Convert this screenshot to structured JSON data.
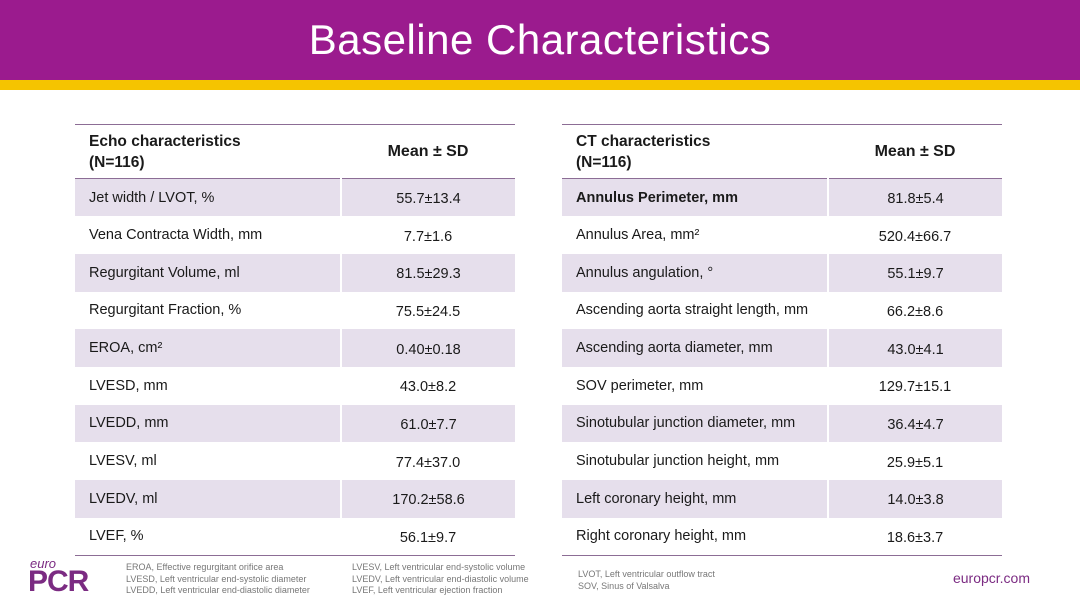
{
  "title": "Baseline Characteristics",
  "colors": {
    "title_bg": "#9b1b8e",
    "stripe": "#f5c400",
    "row_shade": "#e6dfec",
    "brand": "#7b2b82"
  },
  "echo_table": {
    "header_line1": "Echo characteristics",
    "header_line2": "(N=116)",
    "stat_header": "Mean ± SD",
    "rows": [
      {
        "label": "Jet width / LVOT, %",
        "value": "55.7±13.4"
      },
      {
        "label": "Vena Contracta Width, mm",
        "value": "7.7±1.6"
      },
      {
        "label": "Regurgitant Volume, ml",
        "value": "81.5±29.3"
      },
      {
        "label": "Regurgitant Fraction, %",
        "value": "75.5±24.5"
      },
      {
        "label": "EROA, cm²",
        "value": "0.40±0.18"
      },
      {
        "label": "LVESD, mm",
        "value": "43.0±8.2"
      },
      {
        "label": "LVEDD, mm",
        "value": "61.0±7.7"
      },
      {
        "label": "LVESV, ml",
        "value": "77.4±37.0"
      },
      {
        "label": "LVEDV, ml",
        "value": "170.2±58.6"
      },
      {
        "label": "LVEF, %",
        "value": "56.1±9.7"
      }
    ]
  },
  "ct_table": {
    "header_line1": "CT characteristics",
    "header_line2": "(N=116)",
    "stat_header": "Mean ± SD",
    "rows": [
      {
        "label": "Annulus Perimeter, mm",
        "value": "81.8±5.4"
      },
      {
        "label": "Annulus Area, mm²",
        "value": "520.4±66.7"
      },
      {
        "label": "Annulus angulation, °",
        "value": "55.1±9.7"
      },
      {
        "label": "Ascending aorta straight length, mm",
        "value": "66.2±8.6"
      },
      {
        "label": "Ascending aorta diameter, mm",
        "value": "43.0±4.1"
      },
      {
        "label": "SOV perimeter, mm",
        "value": "129.7±15.1"
      },
      {
        "label": "Sinotubular junction diameter, mm",
        "value": "36.4±4.7"
      },
      {
        "label": "Sinotubular junction height, mm",
        "value": "25.9±5.1"
      },
      {
        "label": "Left coronary height, mm",
        "value": "14.0±3.8"
      },
      {
        "label": "Right coronary height, mm",
        "value": "18.6±3.7"
      }
    ]
  },
  "footnotes": {
    "col1": [
      "EROA, Effective regurgitant orifice area",
      "LVESD, Left ventricular end-systolic diameter",
      "LVEDD, Left ventricular end-diastolic diameter"
    ],
    "col2": [
      "LVESV, Left ventricular end-systolic volume",
      "LVEDV, Left ventricular end-diastolic volume",
      "LVEF, Left ventricular ejection fraction"
    ],
    "col3": [
      "LVOT, Left ventricular outflow tract",
      "SOV, Sinus of Valsalva"
    ]
  },
  "logo": {
    "euro": "euro",
    "pcr": "PCR"
  },
  "website": "europcr.com"
}
